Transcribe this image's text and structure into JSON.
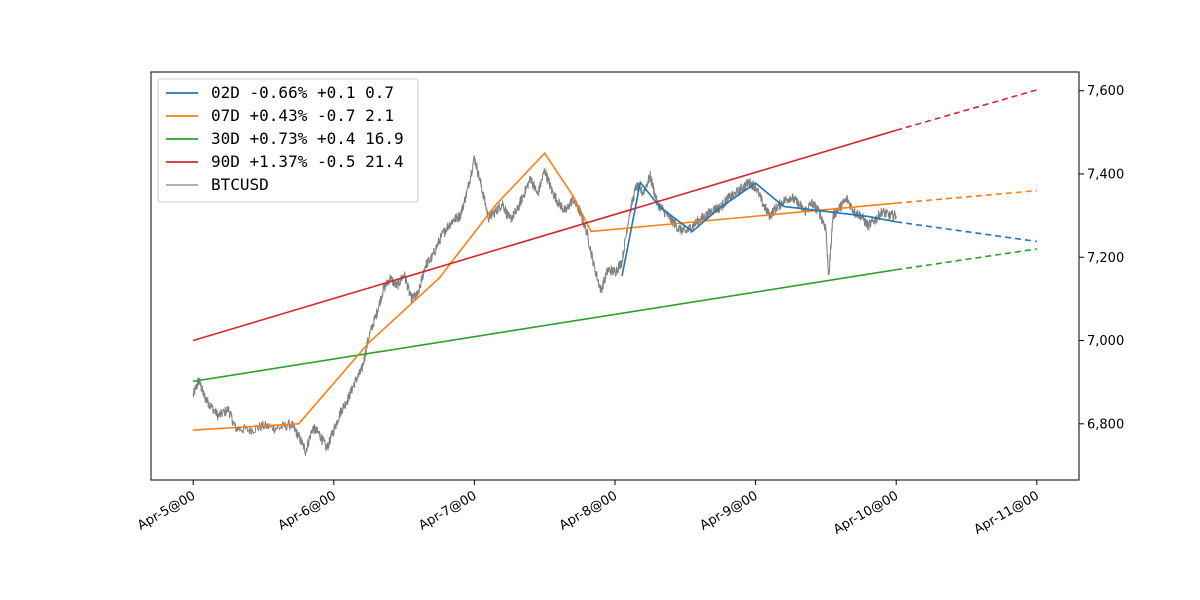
{
  "chart_data": {
    "type": "line",
    "title": "",
    "xlabel": "",
    "ylabel": "",
    "x_unit": "days from Apr-5@00",
    "xlim": [
      -0.3,
      6.3
    ],
    "ylim": [
      6665,
      7645
    ],
    "x_ticks": [
      {
        "value": 0,
        "label": "Apr-5@00"
      },
      {
        "value": 1,
        "label": "Apr-6@00"
      },
      {
        "value": 2,
        "label": "Apr-7@00"
      },
      {
        "value": 3,
        "label": "Apr-8@00"
      },
      {
        "value": 4,
        "label": "Apr-9@00"
      },
      {
        "value": 5,
        "label": "Apr-10@00"
      },
      {
        "value": 6,
        "label": "Apr-11@00"
      }
    ],
    "y_ticks": [
      {
        "value": 6800,
        "label": "6,800"
      },
      {
        "value": 7000,
        "label": "7,000"
      },
      {
        "value": 7200,
        "label": "7,200"
      },
      {
        "value": 7400,
        "label": "7,400"
      },
      {
        "value": 7600,
        "label": "7,600"
      }
    ],
    "y_axis_side": "right",
    "grid": false,
    "legend_position": "top-left",
    "series": [
      {
        "name": "02D -0.66% +0.1 0.7",
        "color": "#1f77b4",
        "solid": [
          [
            3.05,
            7155
          ],
          [
            3.18,
            7380
          ],
          [
            3.32,
            7320
          ],
          [
            3.55,
            7262
          ],
          [
            3.75,
            7320
          ],
          [
            4.0,
            7378
          ],
          [
            4.2,
            7322
          ],
          [
            4.5,
            7310
          ],
          [
            4.8,
            7298
          ],
          [
            5.0,
            7285
          ]
        ],
        "dashed": [
          [
            5.0,
            7285
          ],
          [
            6.0,
            7238
          ]
        ]
      },
      {
        "name": "07D +0.43% -0.7 2.1",
        "color": "#ff7f0e",
        "solid": [
          [
            0.0,
            6785
          ],
          [
            0.75,
            6800
          ],
          [
            1.25,
            6995
          ],
          [
            1.75,
            7150
          ],
          [
            2.15,
            7325
          ],
          [
            2.5,
            7450
          ],
          [
            2.7,
            7348
          ],
          [
            2.83,
            7262
          ],
          [
            5.0,
            7330
          ]
        ],
        "dashed": [
          [
            5.0,
            7330
          ],
          [
            6.0,
            7360
          ]
        ]
      },
      {
        "name": "30D +0.73% +0.4 16.9",
        "color": "#2ca02c",
        "solid": [
          [
            0.0,
            6902
          ],
          [
            5.0,
            7170
          ]
        ],
        "dashed": [
          [
            5.0,
            7170
          ],
          [
            6.0,
            7220
          ]
        ]
      },
      {
        "name": "90D +1.37% -0.5 21.4",
        "color": "#d62728",
        "solid": [
          [
            0.0,
            7000
          ],
          [
            5.0,
            7505
          ]
        ],
        "dashed": [
          [
            5.0,
            7505
          ],
          [
            6.0,
            7602
          ]
        ]
      },
      {
        "name": "BTCUSD",
        "color": "#808080",
        "price_path": [
          [
            0.0,
            6868
          ],
          [
            0.04,
            6905
          ],
          [
            0.08,
            6865
          ],
          [
            0.12,
            6845
          ],
          [
            0.18,
            6818
          ],
          [
            0.25,
            6835
          ],
          [
            0.3,
            6790
          ],
          [
            0.4,
            6785
          ],
          [
            0.5,
            6795
          ],
          [
            0.6,
            6790
          ],
          [
            0.7,
            6798
          ],
          [
            0.75,
            6770
          ],
          [
            0.8,
            6735
          ],
          [
            0.85,
            6790
          ],
          [
            0.9,
            6775
          ],
          [
            0.95,
            6740
          ],
          [
            1.0,
            6785
          ],
          [
            1.05,
            6830
          ],
          [
            1.1,
            6860
          ],
          [
            1.15,
            6900
          ],
          [
            1.2,
            6930
          ],
          [
            1.25,
            7010
          ],
          [
            1.3,
            7060
          ],
          [
            1.35,
            7120
          ],
          [
            1.4,
            7150
          ],
          [
            1.45,
            7130
          ],
          [
            1.5,
            7160
          ],
          [
            1.55,
            7100
          ],
          [
            1.6,
            7110
          ],
          [
            1.65,
            7180
          ],
          [
            1.7,
            7200
          ],
          [
            1.75,
            7240
          ],
          [
            1.8,
            7270
          ],
          [
            1.85,
            7290
          ],
          [
            1.9,
            7300
          ],
          [
            1.95,
            7360
          ],
          [
            2.0,
            7440
          ],
          [
            2.05,
            7370
          ],
          [
            2.1,
            7295
          ],
          [
            2.15,
            7310
          ],
          [
            2.2,
            7330
          ],
          [
            2.25,
            7290
          ],
          [
            2.3,
            7310
          ],
          [
            2.35,
            7350
          ],
          [
            2.4,
            7390
          ],
          [
            2.45,
            7350
          ],
          [
            2.5,
            7410
          ],
          [
            2.55,
            7360
          ],
          [
            2.6,
            7330
          ],
          [
            2.65,
            7310
          ],
          [
            2.7,
            7340
          ],
          [
            2.75,
            7310
          ],
          [
            2.8,
            7260
          ],
          [
            2.85,
            7180
          ],
          [
            2.9,
            7120
          ],
          [
            2.95,
            7170
          ],
          [
            3.0,
            7165
          ],
          [
            3.05,
            7190
          ],
          [
            3.1,
            7300
          ],
          [
            3.15,
            7370
          ],
          [
            3.2,
            7355
          ],
          [
            3.25,
            7395
          ],
          [
            3.3,
            7330
          ],
          [
            3.35,
            7310
          ],
          [
            3.4,
            7290
          ],
          [
            3.45,
            7270
          ],
          [
            3.5,
            7260
          ],
          [
            3.55,
            7275
          ],
          [
            3.6,
            7290
          ],
          [
            3.65,
            7300
          ],
          [
            3.7,
            7315
          ],
          [
            3.75,
            7320
          ],
          [
            3.8,
            7340
          ],
          [
            3.85,
            7350
          ],
          [
            3.9,
            7365
          ],
          [
            3.95,
            7380
          ],
          [
            4.0,
            7370
          ],
          [
            4.05,
            7330
          ],
          [
            4.1,
            7300
          ],
          [
            4.15,
            7320
          ],
          [
            4.2,
            7335
          ],
          [
            4.25,
            7345
          ],
          [
            4.3,
            7330
          ],
          [
            4.35,
            7310
          ],
          [
            4.4,
            7330
          ],
          [
            4.45,
            7310
          ],
          [
            4.5,
            7270
          ],
          [
            4.52,
            7150
          ],
          [
            4.55,
            7300
          ],
          [
            4.6,
            7320
          ],
          [
            4.65,
            7340
          ],
          [
            4.7,
            7310
          ],
          [
            4.75,
            7300
          ],
          [
            4.8,
            7275
          ],
          [
            4.85,
            7290
          ],
          [
            4.9,
            7310
          ],
          [
            4.95,
            7300
          ],
          [
            5.0,
            7300
          ]
        ]
      }
    ]
  }
}
